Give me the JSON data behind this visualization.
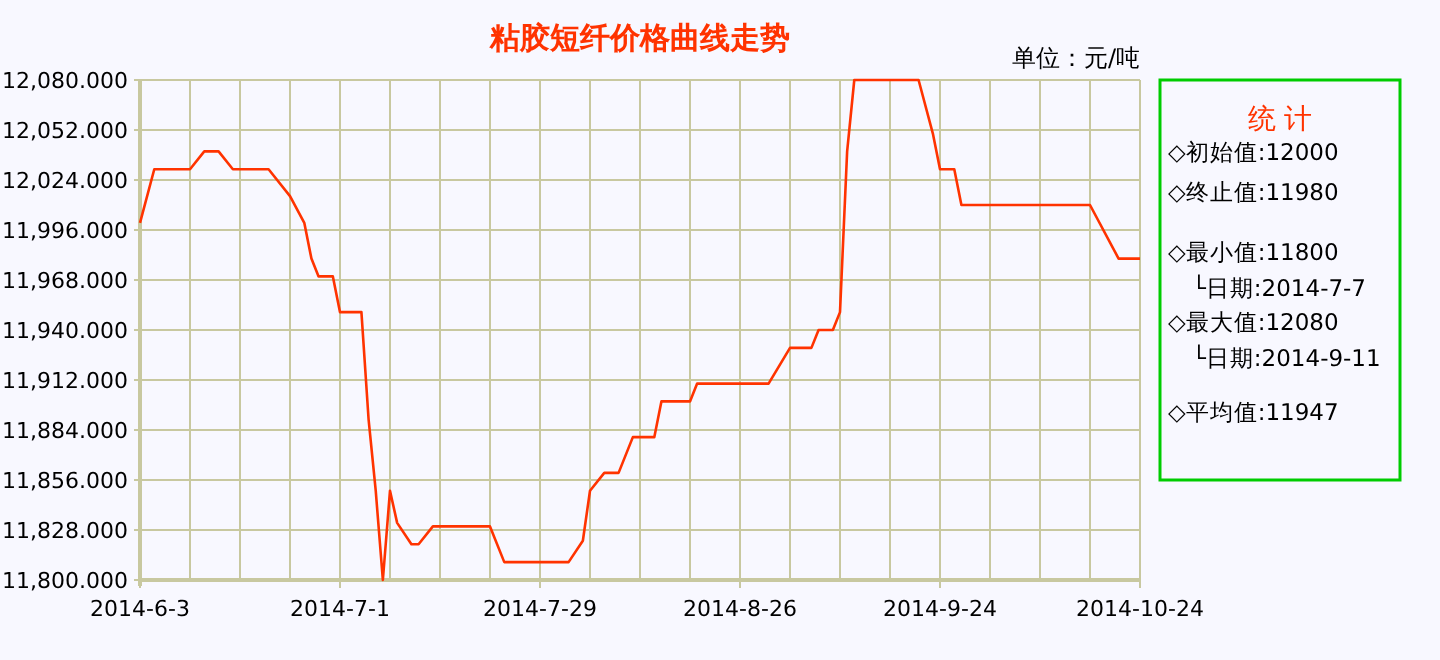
{
  "chart_data": {
    "type": "line",
    "title": "粘胶短纤价格曲线走势",
    "x": [
      "2014-06-03",
      "2014-06-05",
      "2014-06-10",
      "2014-06-12",
      "2014-06-14",
      "2014-06-16",
      "2014-06-21",
      "2014-06-24",
      "2014-06-26",
      "2014-06-27",
      "2014-06-28",
      "2014-06-30",
      "2014-07-01",
      "2014-07-04",
      "2014-07-05",
      "2014-07-06",
      "2014-07-07",
      "2014-07-08",
      "2014-07-09",
      "2014-07-11",
      "2014-07-12",
      "2014-07-14",
      "2014-07-22",
      "2014-07-24",
      "2014-08-02",
      "2014-08-04",
      "2014-08-05",
      "2014-08-07",
      "2014-08-09",
      "2014-08-11",
      "2014-08-14",
      "2014-08-15",
      "2014-08-19",
      "2014-08-20",
      "2014-08-30",
      "2014-09-02",
      "2014-09-05",
      "2014-09-06",
      "2014-09-08",
      "2014-09-09",
      "2014-09-10",
      "2014-09-11",
      "2014-09-20",
      "2014-09-22",
      "2014-09-23",
      "2014-09-25",
      "2014-09-26",
      "2014-10-14",
      "2014-10-18",
      "2014-10-21"
    ],
    "series": [
      {
        "color": "#ff3300",
        "values": [
          12000,
          12030,
          12030,
          12040,
          12040,
          12030,
          12030,
          12015,
          12000,
          11980,
          11970,
          11970,
          11950,
          11950,
          11890,
          11850,
          11800,
          11850,
          11832,
          11820,
          11820,
          11830,
          11830,
          11810,
          11810,
          11822,
          11850,
          11860,
          11860,
          11880,
          11880,
          11900,
          11900,
          11910,
          11910,
          11930,
          11930,
          11940,
          11940,
          11950,
          12040,
          12080,
          12080,
          12050,
          12030,
          12030,
          12010,
          12010,
          11980,
          11980
        ]
      }
    ],
    "xlim": [
      "2014-06-03",
      "2014-10-21"
    ],
    "xticks": [
      {
        "value": "2014-06-03",
        "label": "2014-6-3"
      },
      {
        "value": "2014-06-10",
        "label": null
      },
      {
        "value": "2014-06-17",
        "label": null
      },
      {
        "value": "2014-06-24",
        "label": null
      },
      {
        "value": "2014-07-01",
        "label": "2014-7-1"
      },
      {
        "value": "2014-07-08",
        "label": null
      },
      {
        "value": "2014-07-15",
        "label": null
      },
      {
        "value": "2014-07-22",
        "label": null
      },
      {
        "value": "2014-07-29",
        "label": "2014-7-29"
      },
      {
        "value": "2014-08-05",
        "label": null
      },
      {
        "value": "2014-08-12",
        "label": null
      },
      {
        "value": "2014-08-19",
        "label": null
      },
      {
        "value": "2014-08-26",
        "label": "2014-8-26"
      },
      {
        "value": "2014-09-02",
        "label": null
      },
      {
        "value": "2014-09-09",
        "label": null
      },
      {
        "value": "2014-09-16",
        "label": null
      },
      {
        "value": "2014-09-23",
        "label": "2014-9-24"
      },
      {
        "value": "2014-09-30",
        "label": null
      },
      {
        "value": "2014-10-07",
        "label": null
      },
      {
        "value": "2014-10-14",
        "label": null
      },
      {
        "value": "2014-10-21",
        "label": "2014-10-24"
      }
    ],
    "ylim": [
      11800,
      12080
    ],
    "yticks": [
      {
        "value": 11800,
        "label": "11,800.000"
      },
      {
        "value": 11828,
        "label": "11,828.000"
      },
      {
        "value": 11856,
        "label": "11,856.000"
      },
      {
        "value": 11884,
        "label": "11,884.000"
      },
      {
        "value": 11912,
        "label": "11,912.000"
      },
      {
        "value": 11940,
        "label": "11,940.000"
      },
      {
        "value": 11968,
        "label": "11,968.000"
      },
      {
        "value": 11996,
        "label": "11,996.000"
      },
      {
        "value": 12024,
        "label": "12,024.000"
      },
      {
        "value": 12052,
        "label": "12,052.000"
      },
      {
        "value": 12080,
        "label": "12,080.000"
      }
    ],
    "grid": true,
    "annotations": [
      "单位：元/吨",
      "统 计",
      "◇初始值:12000",
      "◇终止值:11980",
      "◇最小值:11800",
      "└日期:2014-7-7",
      "◇最大值:12080",
      "└日期:2014-9-11",
      "◇平均值:11947"
    ]
  }
}
